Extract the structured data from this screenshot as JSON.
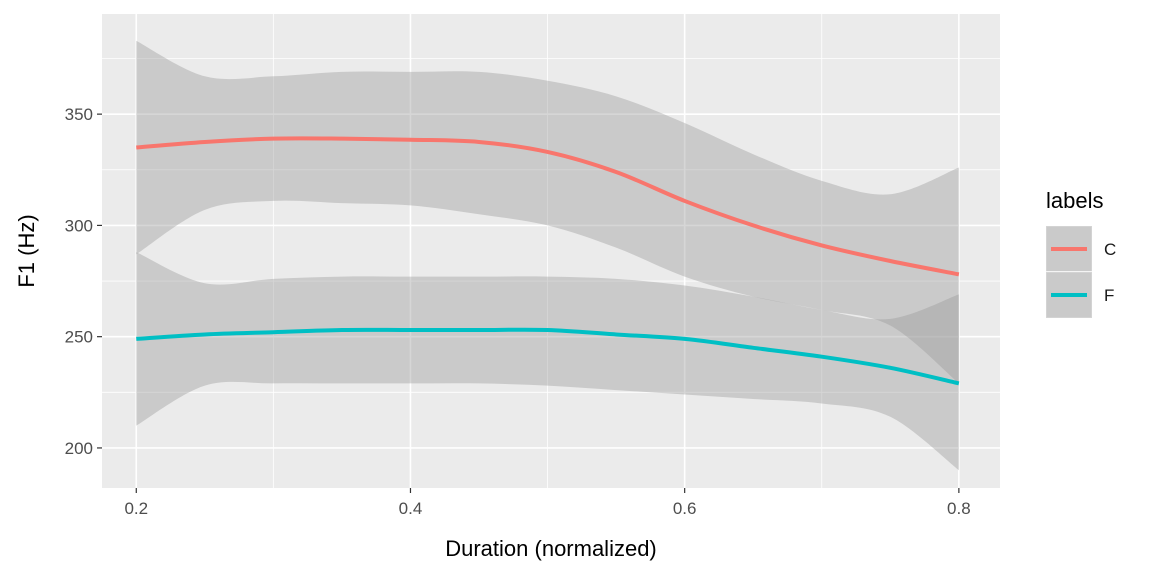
{
  "chart_data": {
    "type": "line",
    "title": "",
    "xlabel": "Duration (normalized)",
    "ylabel": "F1 (Hz)",
    "xlim": [
      0.175,
      0.83
    ],
    "ylim": [
      182,
      395
    ],
    "x_ticks": [
      0.2,
      0.4,
      0.6,
      0.8
    ],
    "x_tick_labels": [
      "0.2",
      "0.4",
      "0.6",
      "0.8"
    ],
    "y_ticks": [
      200,
      250,
      300,
      350
    ],
    "y_tick_labels": [
      "200",
      "250",
      "300",
      "350"
    ],
    "grid": true,
    "legend": {
      "title": "labels",
      "position": "right"
    },
    "series": [
      {
        "name": "C",
        "color": "#F8766D",
        "x": [
          0.2,
          0.25,
          0.3,
          0.35,
          0.4,
          0.45,
          0.5,
          0.55,
          0.6,
          0.65,
          0.7,
          0.75,
          0.8
        ],
        "values": [
          335,
          337.5,
          339,
          339,
          338.5,
          337.5,
          333,
          324,
          311,
          300,
          291,
          284,
          278
        ],
        "ci_lower": [
          287,
          307,
          311,
          310,
          309,
          305,
          300,
          290,
          277,
          268,
          262,
          255,
          229
        ],
        "ci_upper": [
          383,
          367,
          367,
          369,
          369,
          369,
          365,
          358,
          346,
          332,
          320,
          314,
          326
        ]
      },
      {
        "name": "F",
        "color": "#00BFC4",
        "x": [
          0.2,
          0.25,
          0.3,
          0.35,
          0.4,
          0.45,
          0.5,
          0.55,
          0.6,
          0.65,
          0.7,
          0.75,
          0.8
        ],
        "values": [
          249,
          251,
          252,
          253,
          253,
          253,
          253,
          251,
          249,
          245,
          241,
          236,
          229
        ],
        "ci_lower": [
          210,
          228,
          229,
          229,
          229,
          229,
          228,
          226,
          224,
          222,
          220,
          214,
          190
        ],
        "ci_upper": [
          288,
          274,
          276,
          277,
          277,
          277,
          277,
          276,
          273,
          268,
          262,
          258,
          269
        ]
      }
    ]
  }
}
